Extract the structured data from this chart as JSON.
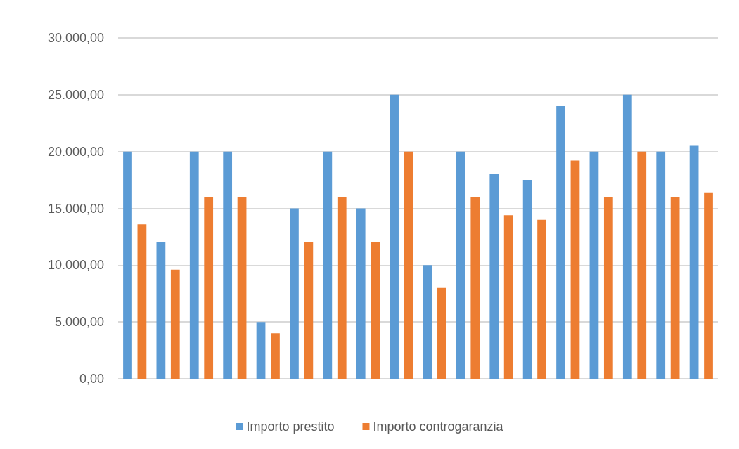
{
  "chart_data": {
    "type": "bar",
    "categories": [
      null,
      null,
      null,
      null,
      null,
      null,
      null,
      null,
      null,
      null,
      null,
      null,
      null,
      null,
      null,
      null,
      null,
      null
    ],
    "series": [
      {
        "name": "Importo prestito",
        "color": "#5b9bd5",
        "values": [
          20000,
          12000,
          20000,
          20000,
          5000,
          15000,
          20000,
          15000,
          25000,
          10000,
          20000,
          18000,
          17500,
          24000,
          20000,
          25000,
          20000,
          20500
        ]
      },
      {
        "name": "Importo controgaranzia",
        "color": "#ed7d31",
        "values": [
          13600,
          9600,
          16000,
          16000,
          4000,
          12000,
          16000,
          12000,
          20000,
          8000,
          16000,
          14400,
          14000,
          19200,
          16000,
          20000,
          16000,
          16400
        ]
      }
    ],
    "ylim": [
      0,
      30000
    ],
    "yticks": [
      {
        "value": 0,
        "label": "0,00"
      },
      {
        "value": 5000,
        "label": "5.000,00"
      },
      {
        "value": 10000,
        "label": "10.000,00"
      },
      {
        "value": 15000,
        "label": "15.000,00"
      },
      {
        "value": 20000,
        "label": "20.000,00"
      },
      {
        "value": 25000,
        "label": "25.000,00"
      },
      {
        "value": 30000,
        "label": "30.000,00"
      }
    ],
    "grid": "y",
    "legend": "bottom"
  }
}
